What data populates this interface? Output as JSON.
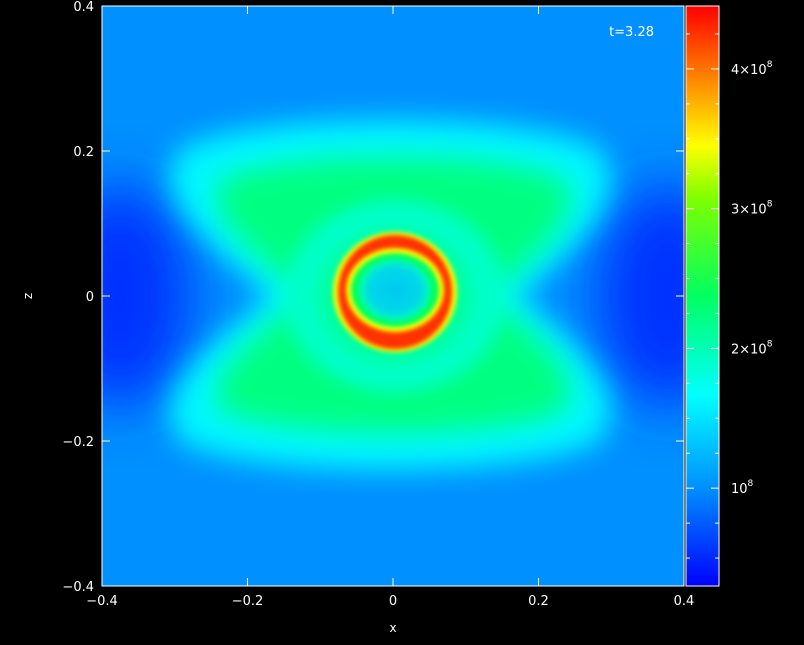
{
  "chart_data": {
    "type": "heatmap",
    "title": "",
    "annotation": "t=3.28",
    "xlabel": "x",
    "ylabel": "z",
    "xlim": [
      -0.4,
      0.4
    ],
    "ylim": [
      -0.4,
      0.4
    ],
    "xticks": [
      -0.4,
      -0.2,
      0,
      0.2,
      0.4
    ],
    "yticks": [
      -0.4,
      -0.2,
      0,
      0.2,
      0.4
    ],
    "xtick_labels": [
      "−0.4",
      "−0.2",
      "0",
      "0.2",
      "0.4"
    ],
    "ytick_labels": [
      "−0.4",
      "−0.2",
      "0",
      "0.2",
      "0.4"
    ],
    "colorbar": {
      "range": [
        30000000,
        445000000
      ],
      "ticks": [
        100000000,
        200000000,
        300000000,
        400000000
      ],
      "tick_labels": [
        {
          "mantissa": "",
          "base": "10",
          "exp": "8"
        },
        {
          "mantissa": "2×",
          "base": "10",
          "exp": "8"
        },
        {
          "mantissa": "3×",
          "base": "10",
          "exp": "8"
        },
        {
          "mantissa": "4×",
          "base": "10",
          "exp": "8"
        }
      ]
    },
    "grid": false,
    "colormap": [
      "#0000ff",
      "#00a0ff",
      "#00ffff",
      "#00ff00",
      "#ffff00",
      "#ff8000",
      "#ff0000"
    ]
  }
}
